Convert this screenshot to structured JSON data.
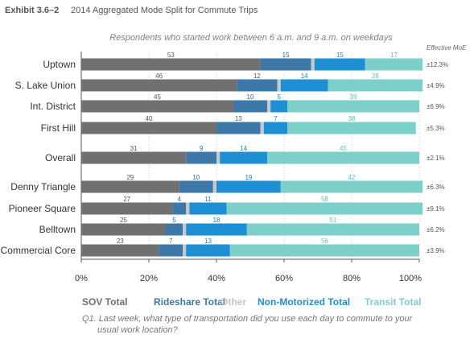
{
  "exhibit": {
    "label": "Exhibit 3.6–2",
    "title": "2014 Aggregated Mode Split for Commute Trips"
  },
  "subtitle": "Respondents who started work between 6 a.m. and 9 a.m. on weekdays",
  "moe_header": "Effective MoE",
  "question": [
    "Q1.  Last week, what type of transportation did you use each day to commute to your",
    "usual work location?"
  ],
  "colors": {
    "sov": "#707070",
    "rideshare": "#3d78a8",
    "other": "#c8c8c8",
    "nonmotorized": "#1e8fd2",
    "transit": "#7dcfc9"
  },
  "chart_data": {
    "type": "bar",
    "orientation": "horizontal",
    "stacked": true,
    "categories": [
      "Uptown",
      "S. Lake Union",
      "Int. District",
      "First Hill",
      "Overall",
      "Denny Triangle",
      "Pioneer Square",
      "Belltown",
      "Commercial Core"
    ],
    "series": [
      {
        "name": "SOV Total",
        "key": "sov",
        "values": [
          53,
          46,
          45,
          40,
          31,
          29,
          27,
          25,
          23
        ]
      },
      {
        "name": "Rideshare Total",
        "key": "rideshare",
        "values": [
          15,
          12,
          10,
          13,
          9,
          10,
          4,
          5,
          7
        ]
      },
      {
        "name": "Other",
        "key": "other",
        "values": [
          1,
          1,
          1,
          1,
          1,
          1,
          1,
          1,
          1
        ]
      },
      {
        "name": "Non-Motorized Total",
        "key": "nonmotorized",
        "values": [
          15,
          14,
          5,
          7,
          14,
          19,
          11,
          18,
          13
        ]
      },
      {
        "name": "Transit Total",
        "key": "transit",
        "values": [
          17,
          28,
          39,
          38,
          45,
          42,
          58,
          51,
          56
        ]
      }
    ],
    "moe": [
      "±12.3%",
      "±4.9%",
      "±6.9%",
      "±5.3%",
      "±2.1%",
      "±6.3%",
      "±9.1%",
      "±6.2%",
      "±3.9%"
    ],
    "xlim": [
      0,
      100
    ],
    "xticks": [
      "0%",
      "20%",
      "40%",
      "60%",
      "80%",
      "100%"
    ],
    "grid": true,
    "legend_position": "bottom"
  }
}
